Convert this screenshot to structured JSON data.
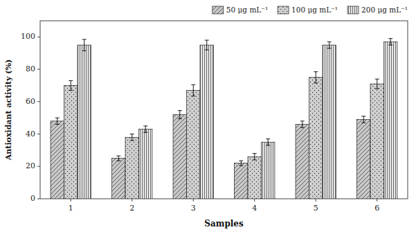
{
  "chart_data": {
    "type": "bar",
    "xlabel": "Samples",
    "ylabel": "Antioxidant activity (%)",
    "categories": [
      "1",
      "2",
      "3",
      "4",
      "5",
      "6"
    ],
    "series": [
      {
        "name": "50 μg mL⁻¹",
        "color": "#c8c8c8",
        "values": [
          48.0,
          25.0,
          52.0,
          22.0,
          46.0,
          49.0
        ],
        "errors": [
          2.0,
          1.5,
          2.5,
          1.5,
          2.0,
          2.0
        ]
      },
      {
        "name": "100 μg mL⁻¹",
        "color": "#d0d0d0",
        "values": [
          70.0,
          38.0,
          67.0,
          26.0,
          75.0,
          71.0
        ],
        "errors": [
          3.0,
          2.0,
          3.5,
          2.0,
          3.5,
          3.0
        ]
      },
      {
        "name": "200 μg mL⁻¹",
        "color": "#e8e8e8",
        "values": [
          95.0,
          43.0,
          95.0,
          35.0,
          95.0,
          97.0
        ],
        "errors": [
          3.5,
          2.0,
          3.0,
          2.0,
          2.0,
          2.0
        ]
      }
    ],
    "ylim": [
      0,
      110
    ],
    "yticks": [
      0,
      20,
      40,
      60,
      80,
      100
    ],
    "grid": false,
    "legend": "upper right"
  }
}
